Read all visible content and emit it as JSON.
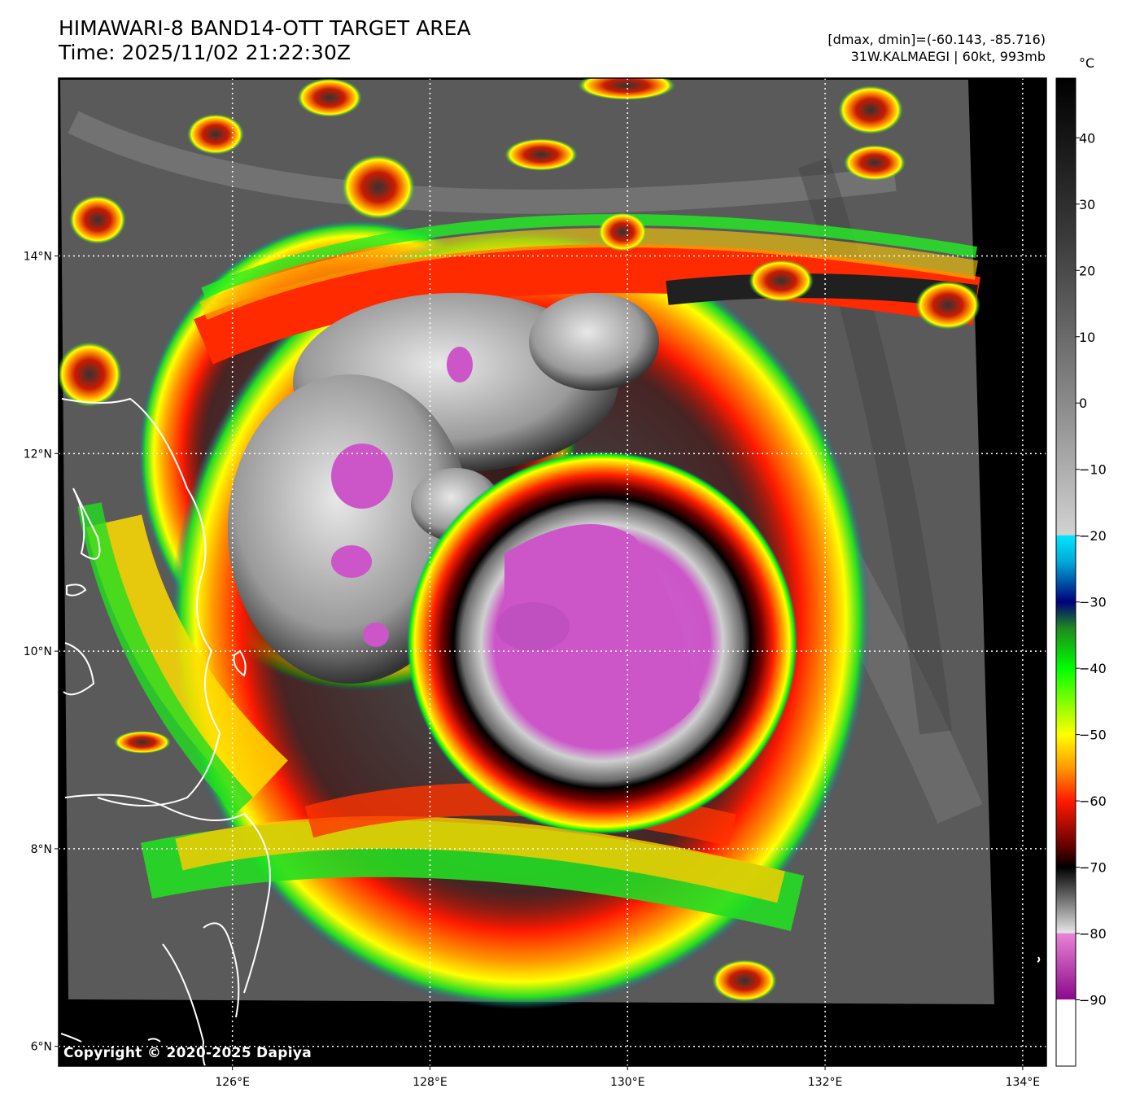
{
  "header": {
    "title_line1": "HIMAWARI-8 BAND14-OTT TARGET AREA",
    "title_line2": "Time: 2025/11/02 21:22:30Z",
    "info_line1": "[dmax, dmin]=(-60.143, -85.716)",
    "info_line2": "31W.KALMAEGI | 60kt, 993mb"
  },
  "map": {
    "lat_ticks": [
      {
        "value": 14,
        "label": "14°N"
      },
      {
        "value": 12,
        "label": "12°N"
      },
      {
        "value": 10,
        "label": "10°N"
      },
      {
        "value": 8,
        "label": "8°N"
      },
      {
        "value": 6,
        "label": "6°N"
      }
    ],
    "lon_ticks": [
      {
        "value": 126,
        "label": "126°E"
      },
      {
        "value": 128,
        "label": "128°E"
      },
      {
        "value": 130,
        "label": "130°E"
      },
      {
        "value": 132,
        "label": "132°E"
      },
      {
        "value": 134,
        "label": "134°E"
      }
    ],
    "lon_range": [
      124.24,
      134.24
    ],
    "lat_range": [
      5.8,
      15.8
    ],
    "storm_center": {
      "lon": 129.4,
      "lat": 10.2
    }
  },
  "colorbar": {
    "unit": "°C",
    "range": [
      -100,
      49
    ],
    "ticks": [
      40,
      30,
      20,
      10,
      0,
      -10,
      -20,
      -30,
      -40,
      -50,
      -60,
      -70,
      -80,
      -90
    ],
    "stops": [
      {
        "t": 49,
        "color": "#000000"
      },
      {
        "t": 25,
        "color": "#3a3a3a"
      },
      {
        "t": 0,
        "color": "#8a8a8a"
      },
      {
        "t": -19.9,
        "color": "#d2d2d2"
      },
      {
        "t": -20,
        "color": "#00e5ff"
      },
      {
        "t": -24,
        "color": "#00a8d8"
      },
      {
        "t": -30,
        "color": "#00007a"
      },
      {
        "t": -34,
        "color": "#1f8a1f"
      },
      {
        "t": -40,
        "color": "#00ff00"
      },
      {
        "t": -50,
        "color": "#ffff00"
      },
      {
        "t": -55,
        "color": "#ff9900"
      },
      {
        "t": -60,
        "color": "#ff1a00"
      },
      {
        "t": -67,
        "color": "#600000"
      },
      {
        "t": -70,
        "color": "#000000"
      },
      {
        "t": -79.9,
        "color": "#e6e6e6"
      },
      {
        "t": -80,
        "color": "#e884d6"
      },
      {
        "t": -89.9,
        "color": "#8b0a8b"
      },
      {
        "t": -90,
        "color": "#ffffff"
      },
      {
        "t": -100,
        "color": "#ffffff"
      }
    ]
  },
  "copyright": "Copyright © 2020-2025 Dapiya"
}
